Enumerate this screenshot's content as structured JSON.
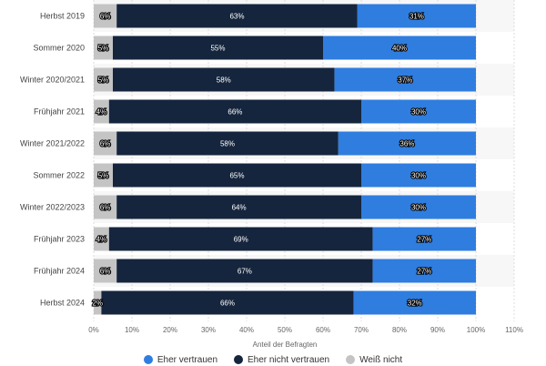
{
  "chart_data": {
    "type": "bar",
    "orientation": "horizontal",
    "stacked": true,
    "categories": [
      "Herbst 2019",
      "Sommer 2020",
      "Winter 2020/2021",
      "Frühjahr 2021",
      "Winter 2021/2022",
      "Sommer 2022",
      "Winter 2022/2023",
      "Frühjahr 2023",
      "Frühjahr 2024",
      "Herbst 2024"
    ],
    "series": [
      {
        "name": "Weiß nicht",
        "values": [
          6,
          5,
          5,
          4,
          6,
          5,
          6,
          4,
          6,
          2
        ],
        "labels": [
          "6%",
          "5%",
          "5%",
          "4%",
          "6%",
          "5%",
          "6%",
          "4%",
          "6%",
          "2%"
        ]
      },
      {
        "name": "Eher nicht vertrauen",
        "values": [
          63,
          55,
          58,
          66,
          58,
          65,
          64,
          69,
          67,
          66
        ],
        "labels": [
          "63%",
          "55%",
          "58%",
          "66%",
          "58%",
          "65%",
          "64%",
          "69%",
          "67%",
          "66%"
        ]
      },
      {
        "name": "Eher vertrauen",
        "values": [
          31,
          40,
          37,
          30,
          36,
          30,
          30,
          27,
          27,
          32
        ],
        "labels": [
          "31%",
          "40%",
          "37%",
          "30%",
          "36%",
          "30%",
          "30%",
          "27%",
          "27%",
          "32%"
        ]
      }
    ],
    "colors": {
      "Weiß nicht": "#c4c4c4",
      "Eher nicht vertrauen": "#15253d",
      "Eher vertrauen": "#2f7ddf"
    },
    "xlabel": "Anteil der Befragten",
    "xticks": [
      "0%",
      "10%",
      "20%",
      "30%",
      "40%",
      "50%",
      "60%",
      "70%",
      "80%",
      "90%",
      "100%",
      "110%"
    ],
    "xlim": [
      0,
      110
    ],
    "grid": true,
    "legend_position": "bottom",
    "legend_order": [
      "Eher vertrauen",
      "Eher nicht vertrauen",
      "Weiß nicht"
    ]
  }
}
